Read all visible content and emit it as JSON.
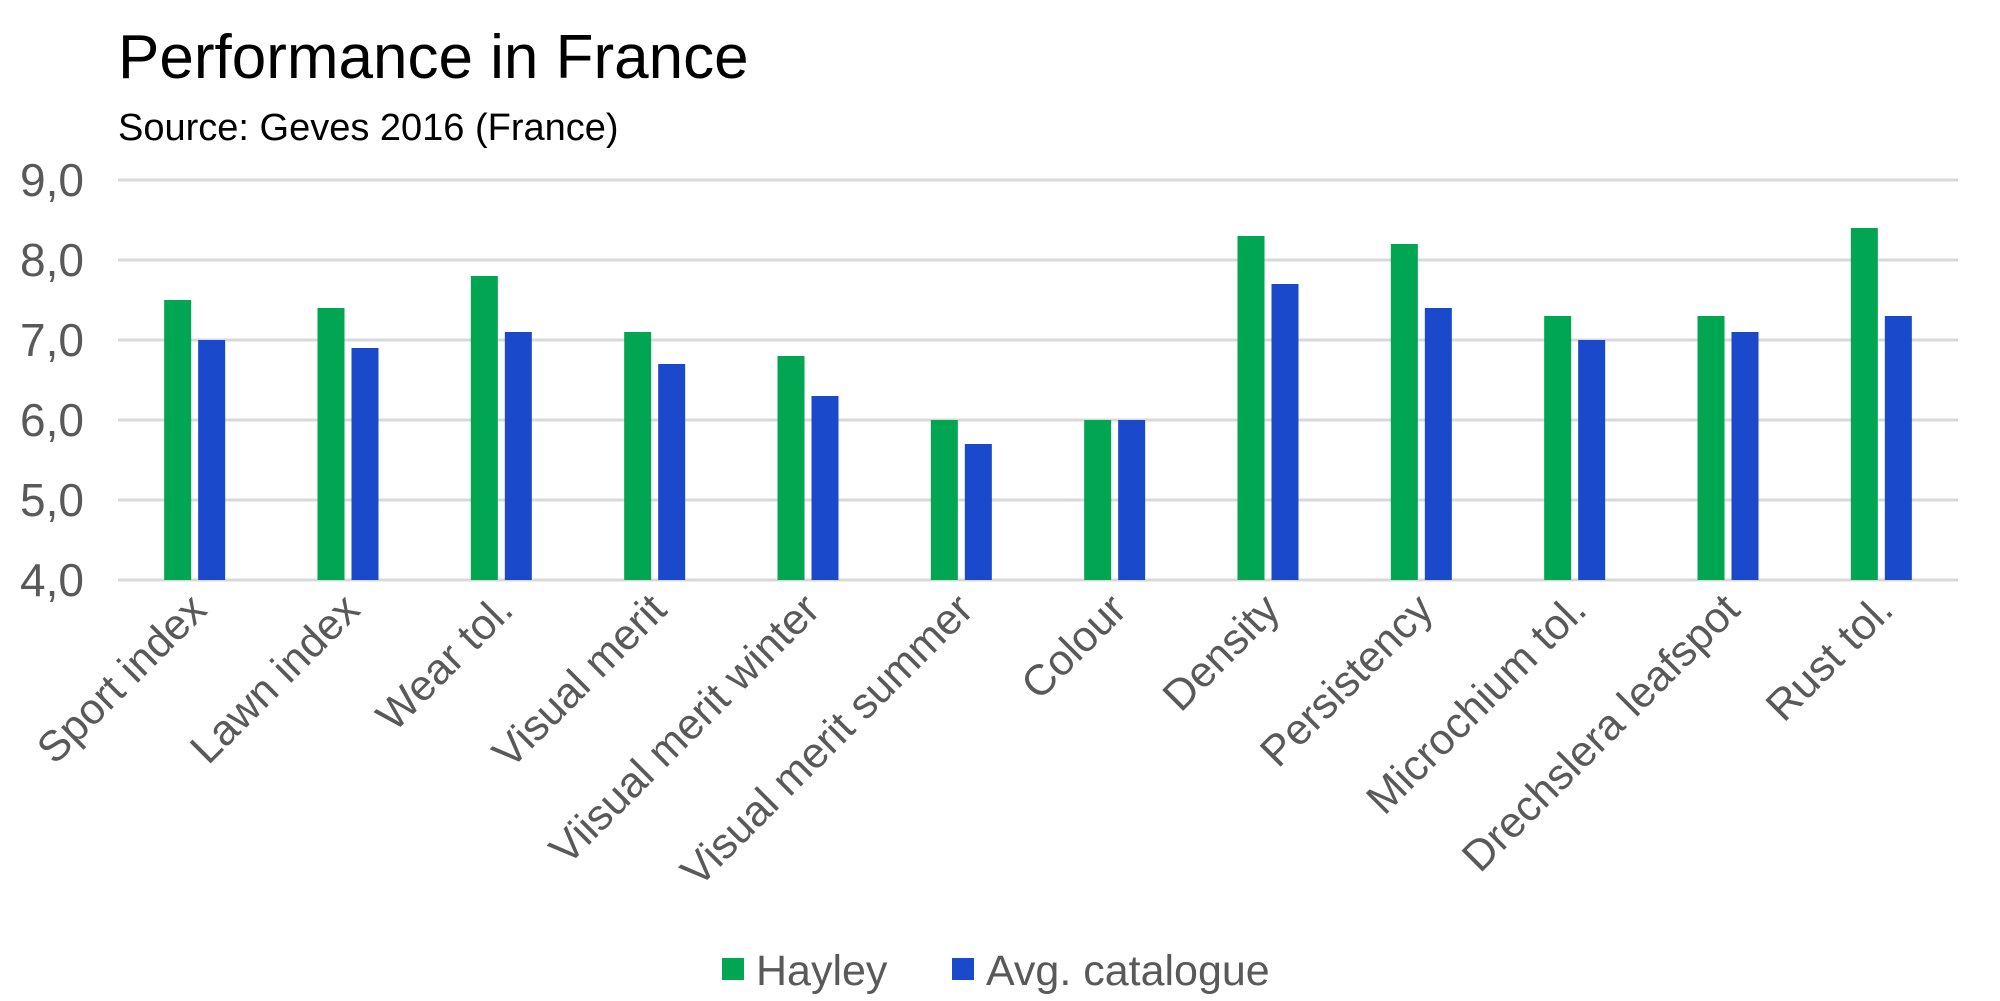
{
  "chart_data": {
    "type": "bar",
    "title": "Performance in France",
    "subtitle": "Source: Geves 2016 (France)",
    "xlabel": "",
    "ylabel": "",
    "ylim": [
      4.0,
      9.0
    ],
    "yticks": [
      "4,0",
      "5,0",
      "6,0",
      "7,0",
      "8,0",
      "9,0"
    ],
    "grid": true,
    "legend_position": "bottom",
    "categories": [
      "Sport index",
      "Lawn index",
      "Wear tol.",
      "Visual merit",
      "Viisual merit winter",
      "Visual merit summer",
      "Colour",
      "Density",
      "Persistency",
      "Microchium tol.",
      "Drechslera leafspot",
      "Rust tol."
    ],
    "series": [
      {
        "name": "Hayley",
        "color": "#00A651",
        "values": [
          7.5,
          7.4,
          7.8,
          7.1,
          6.8,
          6.0,
          6.0,
          8.3,
          8.2,
          7.3,
          7.3,
          8.4
        ]
      },
      {
        "name": "Avg. catalogue",
        "color": "#1A49CC",
        "values": [
          7.0,
          6.9,
          7.1,
          6.7,
          6.3,
          5.7,
          6.0,
          7.7,
          7.4,
          7.0,
          7.1,
          7.3
        ]
      }
    ]
  }
}
